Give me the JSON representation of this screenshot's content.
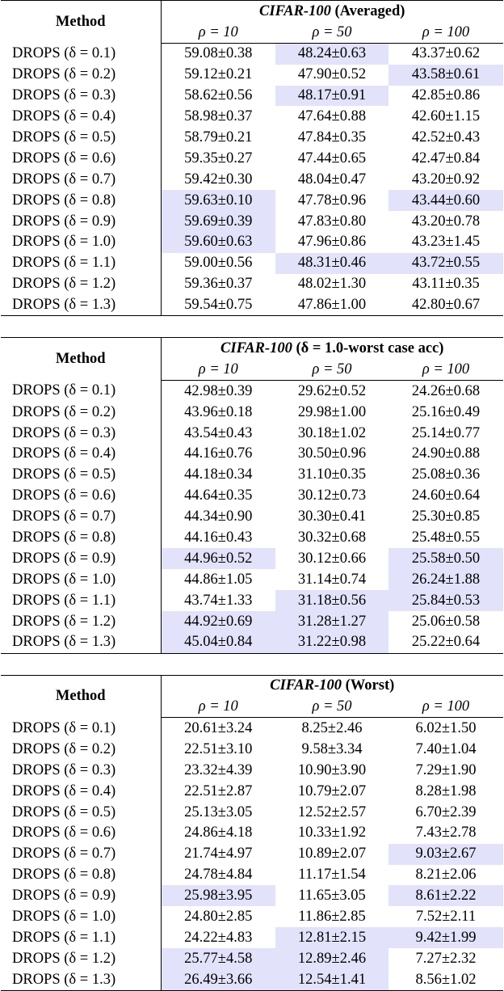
{
  "sections": [
    {
      "method_header": "Method",
      "dataset": "CIFAR-100",
      "title_rest": " (Averaged)",
      "columns": [
        "ρ = 10",
        "ρ = 50",
        "ρ = 100"
      ],
      "rows": [
        {
          "method": "DROPS (δ = 0.1)",
          "cells": [
            {
              "v": "59.08±0.38",
              "hl": false
            },
            {
              "v": "48.24±0.63",
              "hl": true
            },
            {
              "v": "43.37±0.62",
              "hl": false
            }
          ]
        },
        {
          "method": "DROPS (δ = 0.2)",
          "cells": [
            {
              "v": "59.12±0.21",
              "hl": false
            },
            {
              "v": "47.90±0.52",
              "hl": false
            },
            {
              "v": "43.58±0.61",
              "hl": true
            }
          ]
        },
        {
          "method": "DROPS (δ = 0.3)",
          "cells": [
            {
              "v": "58.62±0.56",
              "hl": false
            },
            {
              "v": "48.17±0.91",
              "hl": true
            },
            {
              "v": "42.85±0.86",
              "hl": false
            }
          ]
        },
        {
          "method": "DROPS (δ = 0.4)",
          "cells": [
            {
              "v": "58.98±0.37",
              "hl": false
            },
            {
              "v": "47.64±0.88",
              "hl": false
            },
            {
              "v": "42.60±1.15",
              "hl": false
            }
          ]
        },
        {
          "method": "DROPS (δ = 0.5)",
          "cells": [
            {
              "v": "58.79±0.21",
              "hl": false
            },
            {
              "v": "47.84±0.35",
              "hl": false
            },
            {
              "v": "42.52±0.43",
              "hl": false
            }
          ]
        },
        {
          "method": "DROPS (δ = 0.6)",
          "cells": [
            {
              "v": "59.35±0.27",
              "hl": false
            },
            {
              "v": "47.44±0.65",
              "hl": false
            },
            {
              "v": "42.47±0.84",
              "hl": false
            }
          ]
        },
        {
          "method": "DROPS (δ = 0.7)",
          "cells": [
            {
              "v": "59.42±0.30",
              "hl": false
            },
            {
              "v": "48.04±0.47",
              "hl": false
            },
            {
              "v": "43.20±0.92",
              "hl": false
            }
          ]
        },
        {
          "method": "DROPS (δ = 0.8)",
          "cells": [
            {
              "v": "59.63±0.10",
              "hl": true
            },
            {
              "v": "47.78±0.96",
              "hl": false
            },
            {
              "v": "43.44±0.60",
              "hl": true
            }
          ]
        },
        {
          "method": "DROPS (δ = 0.9)",
          "cells": [
            {
              "v": "59.69±0.39",
              "hl": true
            },
            {
              "v": "47.83±0.80",
              "hl": false
            },
            {
              "v": "43.20±0.78",
              "hl": false
            }
          ]
        },
        {
          "method": "DROPS (δ = 1.0)",
          "cells": [
            {
              "v": "59.60±0.63",
              "hl": true
            },
            {
              "v": "47.96±0.86",
              "hl": false
            },
            {
              "v": "43.23±1.45",
              "hl": false
            }
          ]
        },
        {
          "method": "DROPS (δ = 1.1)",
          "cells": [
            {
              "v": "59.00±0.56",
              "hl": false
            },
            {
              "v": "48.31±0.46",
              "hl": true
            },
            {
              "v": "43.72±0.55",
              "hl": true
            }
          ]
        },
        {
          "method": "DROPS (δ = 1.2)",
          "cells": [
            {
              "v": "59.36±0.37",
              "hl": false
            },
            {
              "v": "48.02±1.30",
              "hl": false
            },
            {
              "v": "43.11±0.35",
              "hl": false
            }
          ]
        },
        {
          "method": "DROPS (δ = 1.3)",
          "cells": [
            {
              "v": "59.54±0.75",
              "hl": false
            },
            {
              "v": "47.86±1.00",
              "hl": false
            },
            {
              "v": "42.80±0.67",
              "hl": false
            }
          ]
        }
      ]
    },
    {
      "method_header": "Method",
      "dataset": "CIFAR-100",
      "title_rest": " (δ = 1.0-worst case acc)",
      "columns": [
        "ρ = 10",
        "ρ = 50",
        "ρ = 100"
      ],
      "rows": [
        {
          "method": "DROPS (δ = 0.1)",
          "cells": [
            {
              "v": "42.98±0.39",
              "hl": false
            },
            {
              "v": "29.62±0.52",
              "hl": false
            },
            {
              "v": "24.26±0.68",
              "hl": false
            }
          ]
        },
        {
          "method": "DROPS (δ = 0.2)",
          "cells": [
            {
              "v": "43.96±0.18",
              "hl": false
            },
            {
              "v": "29.98±1.00",
              "hl": false
            },
            {
              "v": "25.16±0.49",
              "hl": false
            }
          ]
        },
        {
          "method": "DROPS (δ = 0.3)",
          "cells": [
            {
              "v": "43.54±0.43",
              "hl": false
            },
            {
              "v": "30.18±1.02",
              "hl": false
            },
            {
              "v": "25.14±0.77",
              "hl": false
            }
          ]
        },
        {
          "method": "DROPS (δ = 0.4)",
          "cells": [
            {
              "v": "44.16±0.76",
              "hl": false
            },
            {
              "v": "30.50±0.96",
              "hl": false
            },
            {
              "v": "24.90±0.88",
              "hl": false
            }
          ]
        },
        {
          "method": "DROPS (δ = 0.5)",
          "cells": [
            {
              "v": "44.18±0.34",
              "hl": false
            },
            {
              "v": "31.10±0.35",
              "hl": false
            },
            {
              "v": "25.08±0.36",
              "hl": false
            }
          ]
        },
        {
          "method": "DROPS (δ = 0.6)",
          "cells": [
            {
              "v": "44.64±0.35",
              "hl": false
            },
            {
              "v": "30.12±0.73",
              "hl": false
            },
            {
              "v": "24.60±0.64",
              "hl": false
            }
          ]
        },
        {
          "method": "DROPS (δ = 0.7)",
          "cells": [
            {
              "v": "44.34±0.90",
              "hl": false
            },
            {
              "v": "30.30±0.41",
              "hl": false
            },
            {
              "v": "25.30±0.85",
              "hl": false
            }
          ]
        },
        {
          "method": "DROPS (δ = 0.8)",
          "cells": [
            {
              "v": "44.16±0.43",
              "hl": false
            },
            {
              "v": "30.32±0.68",
              "hl": false
            },
            {
              "v": "25.48±0.55",
              "hl": false
            }
          ]
        },
        {
          "method": "DROPS (δ = 0.9)",
          "cells": [
            {
              "v": "44.96±0.52",
              "hl": true
            },
            {
              "v": "30.12±0.66",
              "hl": false
            },
            {
              "v": "25.58±0.50",
              "hl": true
            }
          ]
        },
        {
          "method": "DROPS (δ = 1.0)",
          "cells": [
            {
              "v": "44.86±1.05",
              "hl": false
            },
            {
              "v": "31.14±0.74",
              "hl": false
            },
            {
              "v": "26.24±1.88",
              "hl": true
            }
          ]
        },
        {
          "method": "DROPS (δ = 1.1)",
          "cells": [
            {
              "v": "43.74±1.33",
              "hl": false
            },
            {
              "v": "31.18±0.56",
              "hl": true
            },
            {
              "v": "25.84±0.53",
              "hl": true
            }
          ]
        },
        {
          "method": "DROPS (δ = 1.2)",
          "cells": [
            {
              "v": "44.92±0.69",
              "hl": true
            },
            {
              "v": "31.28±1.27",
              "hl": true
            },
            {
              "v": "25.06±0.58",
              "hl": false
            }
          ]
        },
        {
          "method": "DROPS (δ = 1.3)",
          "cells": [
            {
              "v": "45.04±0.84",
              "hl": true
            },
            {
              "v": "31.22±0.98",
              "hl": true
            },
            {
              "v": "25.22±0.64",
              "hl": false
            }
          ]
        }
      ]
    },
    {
      "method_header": "Method",
      "dataset": "CIFAR-100",
      "title_rest": " (Worst)",
      "columns": [
        "ρ = 10",
        "ρ = 50",
        "ρ = 100"
      ],
      "rows": [
        {
          "method": "DROPS (δ = 0.1)",
          "cells": [
            {
              "v": "20.61±3.24",
              "hl": false
            },
            {
              "v": "8.25±2.46",
              "hl": false
            },
            {
              "v": "6.02±1.50",
              "hl": false
            }
          ]
        },
        {
          "method": "DROPS (δ = 0.2)",
          "cells": [
            {
              "v": "22.51±3.10",
              "hl": false
            },
            {
              "v": "9.58±3.34",
              "hl": false
            },
            {
              "v": "7.40±1.04",
              "hl": false
            }
          ]
        },
        {
          "method": "DROPS (δ = 0.3)",
          "cells": [
            {
              "v": "23.32±4.39",
              "hl": false
            },
            {
              "v": "10.90±3.90",
              "hl": false
            },
            {
              "v": "7.29±1.90",
              "hl": false
            }
          ]
        },
        {
          "method": "DROPS (δ = 0.4)",
          "cells": [
            {
              "v": "22.51±2.87",
              "hl": false
            },
            {
              "v": "10.79±2.07",
              "hl": false
            },
            {
              "v": "8.28±1.98",
              "hl": false
            }
          ]
        },
        {
          "method": "DROPS (δ = 0.5)",
          "cells": [
            {
              "v": "25.13±3.05",
              "hl": false
            },
            {
              "v": "12.52±2.57",
              "hl": false
            },
            {
              "v": "6.70±2.39",
              "hl": false
            }
          ]
        },
        {
          "method": "DROPS (δ = 0.6)",
          "cells": [
            {
              "v": "24.86±4.18",
              "hl": false
            },
            {
              "v": "10.33±1.92",
              "hl": false
            },
            {
              "v": "7.43±2.78",
              "hl": false
            }
          ]
        },
        {
          "method": "DROPS (δ = 0.7)",
          "cells": [
            {
              "v": "21.74±4.97",
              "hl": false
            },
            {
              "v": "10.89±2.07",
              "hl": false
            },
            {
              "v": "9.03±2.67",
              "hl": true
            }
          ]
        },
        {
          "method": "DROPS (δ = 0.8)",
          "cells": [
            {
              "v": "24.78±4.84",
              "hl": false
            },
            {
              "v": "11.17±1.54",
              "hl": false
            },
            {
              "v": "8.21±2.06",
              "hl": false
            }
          ]
        },
        {
          "method": "DROPS (δ = 0.9)",
          "cells": [
            {
              "v": "25.98±3.95",
              "hl": true
            },
            {
              "v": "11.65±3.05",
              "hl": false
            },
            {
              "v": "8.61±2.22",
              "hl": true
            }
          ]
        },
        {
          "method": "DROPS (δ = 1.0)",
          "cells": [
            {
              "v": "24.80±2.85",
              "hl": false
            },
            {
              "v": "11.86±2.85",
              "hl": false
            },
            {
              "v": "7.52±2.11",
              "hl": false
            }
          ]
        },
        {
          "method": "DROPS (δ = 1.1)",
          "cells": [
            {
              "v": "24.22±4.83",
              "hl": false
            },
            {
              "v": "12.81±2.15",
              "hl": true
            },
            {
              "v": "9.42±1.99",
              "hl": true
            }
          ]
        },
        {
          "method": "DROPS (δ = 1.2)",
          "cells": [
            {
              "v": "25.77±4.58",
              "hl": true
            },
            {
              "v": "12.89±2.46",
              "hl": true
            },
            {
              "v": "7.27±2.32",
              "hl": false
            }
          ]
        },
        {
          "method": "DROPS (δ = 1.3)",
          "cells": [
            {
              "v": "26.49±3.66",
              "hl": true
            },
            {
              "v": "12.54±1.41",
              "hl": true
            },
            {
              "v": "8.56±1.02",
              "hl": false
            }
          ]
        }
      ]
    }
  ]
}
